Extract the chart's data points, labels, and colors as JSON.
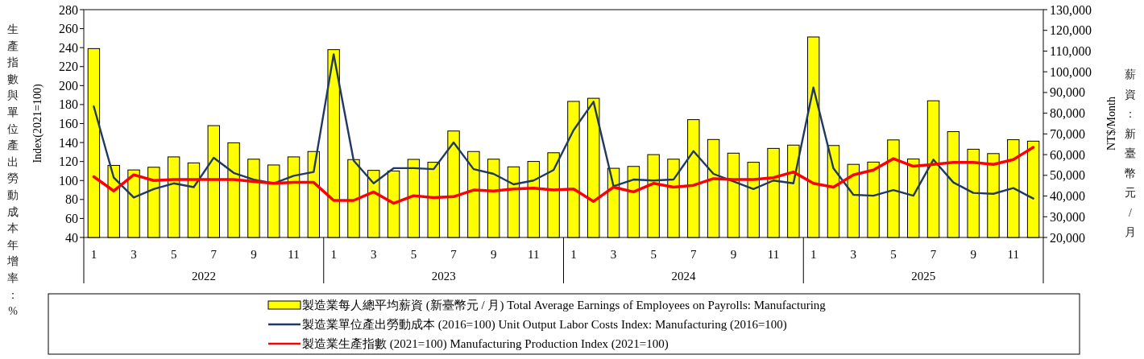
{
  "chart_data": {
    "type": "bar",
    "categories": [
      "1",
      null,
      "3",
      null,
      "5",
      null,
      "7",
      null,
      "9",
      null,
      "11",
      null,
      "1",
      null,
      "3",
      null,
      "5",
      null,
      "7",
      null,
      "9",
      null,
      "11",
      null,
      "1",
      null,
      "3",
      null,
      "5",
      null,
      "7",
      null,
      "9",
      null,
      "11",
      null,
      "1",
      null,
      "3",
      null,
      "5",
      null,
      "7",
      null,
      "9",
      null,
      "11",
      null
    ],
    "ylabel": "Index(2021=100)",
    "y2label": "NT$/Month",
    "annotations": [
      "生產指數與單位產出勞動成本年增率：%",
      "薪資：新臺幣元/月",
      "2022",
      "2023",
      "2024",
      "2025"
    ],
    "ylim": [
      40,
      280
    ],
    "yticks": [
      40,
      60,
      80,
      100,
      120,
      140,
      160,
      180,
      200,
      220,
      240,
      260,
      280
    ],
    "y2lim": [
      20000,
      130000
    ],
    "y2ticks": [
      {
        "value": 20000,
        "label": "20,000"
      },
      {
        "value": 30000,
        "label": "30,000"
      },
      {
        "value": 40000,
        "label": "40,000"
      },
      {
        "value": 50000,
        "label": "50,000"
      },
      {
        "value": 60000,
        "label": "60,000"
      },
      {
        "value": 70000,
        "label": "70,000"
      },
      {
        "value": 80000,
        "label": "80,000"
      },
      {
        "value": 90000,
        "label": "90,000"
      },
      {
        "value": 100000,
        "label": "100,000"
      },
      {
        "value": 110000,
        "label": "110,000"
      },
      {
        "value": 120000,
        "label": "120,000"
      },
      {
        "value": 130000,
        "label": "130,000"
      }
    ],
    "legend": "bottom",
    "series": [
      {
        "name": "製造業每人總平均薪資 (新臺幣元 / 月)  Total Average Earnings of Employees on Payrolls: Manufacturing",
        "axis": "y2",
        "color": "#ffff00",
        "values": [
          111200,
          54800,
          52600,
          53900,
          58900,
          56000,
          74000,
          65700,
          57800,
          55000,
          58900,
          61500,
          110700,
          57600,
          52400,
          52100,
          57700,
          56300,
          71400,
          61500,
          57800,
          54100,
          56700,
          60900,
          85700,
          87200,
          53400,
          54300,
          60000,
          57800,
          76900,
          67300,
          60700,
          56300,
          63000,
          64600,
          116800,
          64400,
          55300,
          56400,
          67100,
          57900,
          86000,
          71100,
          62600,
          60500,
          67200,
          66500
        ]
      },
      {
        "name": "製造業單位產出勞動成本 (2016=100) Unit Output Labor Costs Index: Manufacturing (2016=100)",
        "type": "line",
        "axis": "y",
        "color": "#203864",
        "values": [
          178,
          103,
          82,
          91,
          97,
          93,
          124,
          108,
          101,
          97,
          105,
          109,
          233,
          121,
          97,
          113,
          113,
          112,
          140,
          112,
          107,
          96,
          100,
          111,
          153,
          183,
          94,
          101,
          100,
          101,
          131,
          107,
          99,
          91,
          100,
          97,
          198,
          113,
          85,
          84,
          90,
          84,
          122,
          98,
          87,
          86,
          92,
          81
        ]
      },
      {
        "name": "製造業生產指數 (2021=100) Manufacturing Production Index (2021=100)",
        "type": "line",
        "axis": "y",
        "color": "#ff0000",
        "values": [
          104,
          89,
          106,
          100,
          101,
          101,
          101,
          101,
          99,
          97,
          98,
          98,
          79,
          79,
          88,
          76,
          84,
          82,
          83,
          90,
          89,
          91,
          92,
          90,
          91,
          78,
          93,
          88,
          97,
          93,
          95,
          102,
          101,
          101,
          103,
          109,
          97,
          93,
          106,
          111,
          123,
          115,
          117,
          119,
          119,
          117,
          122,
          135
        ]
      }
    ]
  }
}
